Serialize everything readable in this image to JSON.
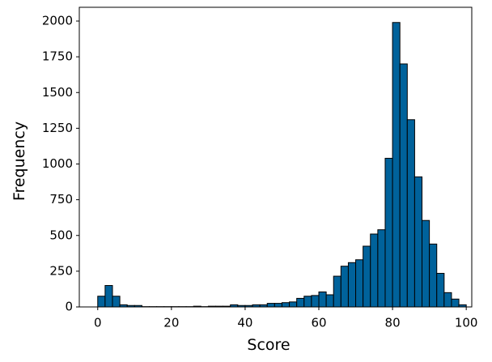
{
  "chart_data": {
    "type": "histogram",
    "x_label": "Score",
    "y_label": "Frequency",
    "bins": [
      0,
      2,
      4,
      6,
      8,
      10,
      12,
      14,
      16,
      18,
      20,
      22,
      24,
      26,
      28,
      30,
      32,
      34,
      36,
      38,
      40,
      42,
      44,
      46,
      48,
      50,
      52,
      54,
      56,
      58,
      60,
      62,
      64,
      66,
      68,
      70,
      72,
      74,
      76,
      78,
      80,
      82,
      84,
      86,
      88,
      90,
      92,
      94,
      96,
      98,
      100
    ],
    "values": [
      75,
      150,
      75,
      15,
      10,
      10,
      2,
      2,
      2,
      2,
      2,
      2,
      2,
      5,
      2,
      5,
      5,
      5,
      15,
      10,
      10,
      15,
      15,
      25,
      25,
      30,
      35,
      60,
      75,
      80,
      105,
      85,
      215,
      285,
      310,
      330,
      425,
      510,
      540,
      1040,
      1990,
      1700,
      1310,
      910,
      605,
      440,
      235,
      100,
      55,
      15
    ],
    "color": "#00629b",
    "edge_color": "#000000",
    "xlim": [
      -5,
      101.5
    ],
    "xticks": [
      0,
      20,
      40,
      60,
      80,
      100
    ],
    "ylim": [
      0,
      2000
    ],
    "yticks": [
      0,
      250,
      500,
      750,
      1000,
      1250,
      1500,
      1750,
      2000
    ]
  }
}
